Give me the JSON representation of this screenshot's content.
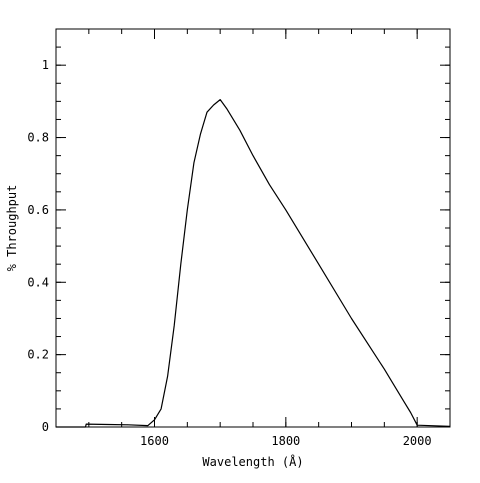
{
  "chart_data": {
    "type": "line",
    "title": "",
    "xlabel": "Wavelength (Å)",
    "ylabel": "% Throughput",
    "xlim": [
      1450,
      2050
    ],
    "ylim": [
      0,
      1.1
    ],
    "grid": false,
    "legend": "none",
    "x_ticks": [
      {
        "value": 1600,
        "label": "1600"
      },
      {
        "value": 1800,
        "label": "1800"
      },
      {
        "value": 2000,
        "label": "2000"
      }
    ],
    "x_minor_step": 50,
    "y_ticks": [
      {
        "value": 0,
        "label": "0"
      },
      {
        "value": 0.2,
        "label": "0.2"
      },
      {
        "value": 0.4,
        "label": "0.4"
      },
      {
        "value": 0.6,
        "label": "0.6"
      },
      {
        "value": 0.8,
        "label": "0.8"
      },
      {
        "value": 1,
        "label": "1"
      }
    ],
    "y_minor_step": 0.05,
    "series": [
      {
        "color": "#000000",
        "x": [
          1450,
          1495,
          1496,
          1530,
          1560,
          1590,
          1600,
          1610,
          1620,
          1630,
          1640,
          1650,
          1660,
          1670,
          1680,
          1690,
          1700,
          1710,
          1730,
          1750,
          1775,
          1800,
          1850,
          1900,
          1950,
          1980,
          1990,
          2000,
          2050
        ],
        "y": [
          0.0,
          0.0,
          0.008,
          0.007,
          0.006,
          0.004,
          0.02,
          0.05,
          0.14,
          0.28,
          0.45,
          0.6,
          0.73,
          0.81,
          0.87,
          0.89,
          0.905,
          0.88,
          0.82,
          0.75,
          0.67,
          0.6,
          0.45,
          0.3,
          0.16,
          0.07,
          0.04,
          0.005,
          0.002
        ]
      }
    ]
  }
}
